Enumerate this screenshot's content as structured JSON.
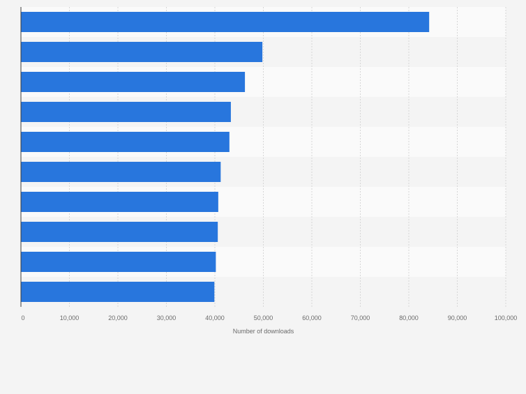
{
  "chart_data": {
    "type": "bar",
    "orientation": "horizontal",
    "title": "",
    "xlabel": "Number of downloads",
    "ylabel": "",
    "xlim": [
      0,
      100000
    ],
    "ticks": [
      0,
      10000,
      20000,
      30000,
      40000,
      50000,
      60000,
      70000,
      80000,
      90000,
      100000
    ],
    "tick_labels": [
      "0",
      "10,000",
      "20,000",
      "30,000",
      "40,000",
      "50,000",
      "60,000",
      "70,000",
      "80,000",
      "90,000",
      "100,000"
    ],
    "categories": [
      "",
      "",
      "",
      "",
      "",
      "",
      "",
      "",
      "",
      ""
    ],
    "values": [
      84200,
      49800,
      46200,
      43300,
      43000,
      41200,
      40700,
      40600,
      40200,
      39900
    ],
    "grid": true,
    "legend": "none",
    "colors": {
      "bar": "#2876dd",
      "band_light": "#fafafa",
      "band_dark": "#f4f4f4",
      "grid": "#d6d6d6",
      "axis": "#3c3c3c",
      "text": "#6a6a6a"
    }
  }
}
